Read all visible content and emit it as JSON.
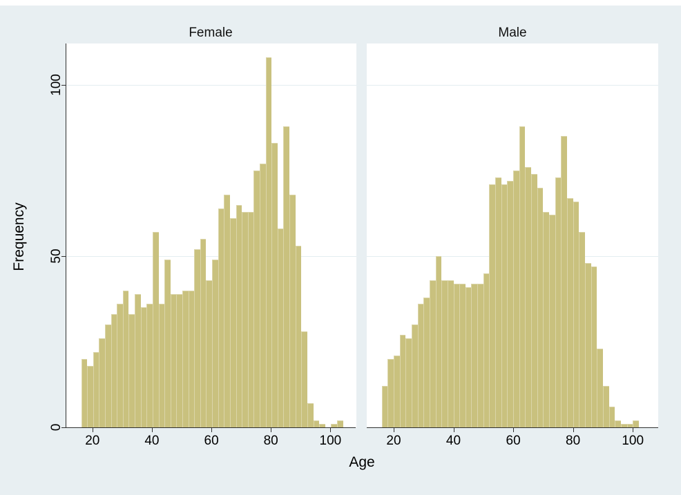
{
  "figure": {
    "bg_color": "#e8eff2",
    "top_strip_color": "#ffffff",
    "header_bg": "#dae7ed",
    "plot_bg": "#ffffff",
    "bar_fill": "#c9c17e",
    "bar_edge": "#dbd5a9",
    "grid_color": "#e3edf0",
    "axis_color": "#2e2e2e",
    "text_color": "#000000"
  },
  "y_axis": {
    "title": "Frequency",
    "tick_labels": [
      "0",
      "50",
      "100"
    ],
    "tick_values": [
      0,
      50,
      100
    ],
    "max_units": 112
  },
  "x_axis": {
    "title": "Age",
    "tick_labels": [
      "20",
      "40",
      "60",
      "80",
      "100"
    ],
    "tick_values": [
      20,
      40,
      60,
      80,
      100
    ],
    "min": 11,
    "max": 108.5
  },
  "chart_data": [
    {
      "type": "bar",
      "subtype": "histogram",
      "panel": "Female",
      "bin_start": 16,
      "bin_width": 2,
      "xlabel": "Age",
      "ylabel": "Frequency",
      "frequencies": [
        20,
        18,
        22,
        26,
        30,
        33,
        36,
        40,
        33,
        39,
        35,
        36,
        57,
        36,
        49,
        39,
        39,
        40,
        40,
        52,
        55,
        43,
        49,
        64,
        68,
        61,
        65,
        63,
        63,
        75,
        77,
        108,
        83,
        58,
        88,
        68,
        53,
        28,
        7,
        2,
        1,
        0,
        1,
        2
      ]
    },
    {
      "type": "bar",
      "subtype": "histogram",
      "panel": "Male",
      "bin_start": 16,
      "bin_width": 2,
      "xlabel": "Age",
      "ylabel": "Frequency",
      "frequencies": [
        12,
        20,
        21,
        27,
        26,
        30,
        36,
        38,
        43,
        50,
        43,
        43,
        42,
        42,
        41,
        42,
        42,
        45,
        71,
        73,
        71,
        72,
        75,
        88,
        76,
        74,
        70,
        63,
        62,
        73,
        85,
        67,
        66,
        57,
        48,
        47,
        23,
        12,
        6,
        2,
        1,
        1,
        2
      ]
    }
  ]
}
